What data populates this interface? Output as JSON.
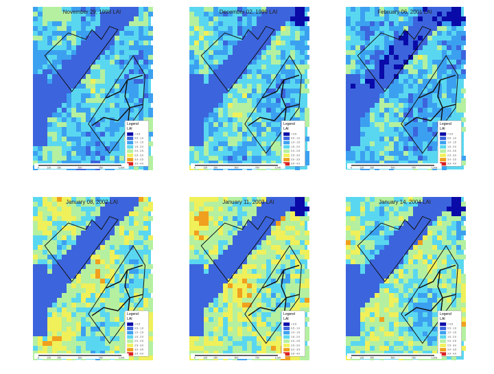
{
  "panels": [
    {
      "title": "November 29, 1998 LAI"
    },
    {
      "title": "December 02, 1999 LAI"
    },
    {
      "title": "February 06, 2001 LAI"
    },
    {
      "title": "January 08, 2002 LAI"
    },
    {
      "title": "January 11, 2003 LAI"
    },
    {
      "title": "January 14, 2004 LAI"
    }
  ],
  "legend": {
    "title": "Legend",
    "unit": "LAI",
    "classes": [
      {
        "label": "< 0.5",
        "color": "#0a0aa8"
      },
      {
        "label": "0.5 - 1.0",
        "color": "#3c64dc"
      },
      {
        "label": "1.0 - 1.5",
        "color": "#3ca0f0"
      },
      {
        "label": "1.5 - 2.0",
        "color": "#5ad7f0"
      },
      {
        "label": "2.0 - 2.5",
        "color": "#b4f0a0"
      },
      {
        "label": "2.5 - 3.0",
        "color": "#f0f05a"
      },
      {
        "label": "3.0 - 3.5",
        "color": "#f0a01e"
      },
      {
        "label": "3.5 - 4.0",
        "color": "#dc1e1e"
      }
    ]
  },
  "scale_bar": {
    "labels": [
      "0",
      "125",
      "250",
      "500",
      "750",
      "1,000"
    ]
  }
}
